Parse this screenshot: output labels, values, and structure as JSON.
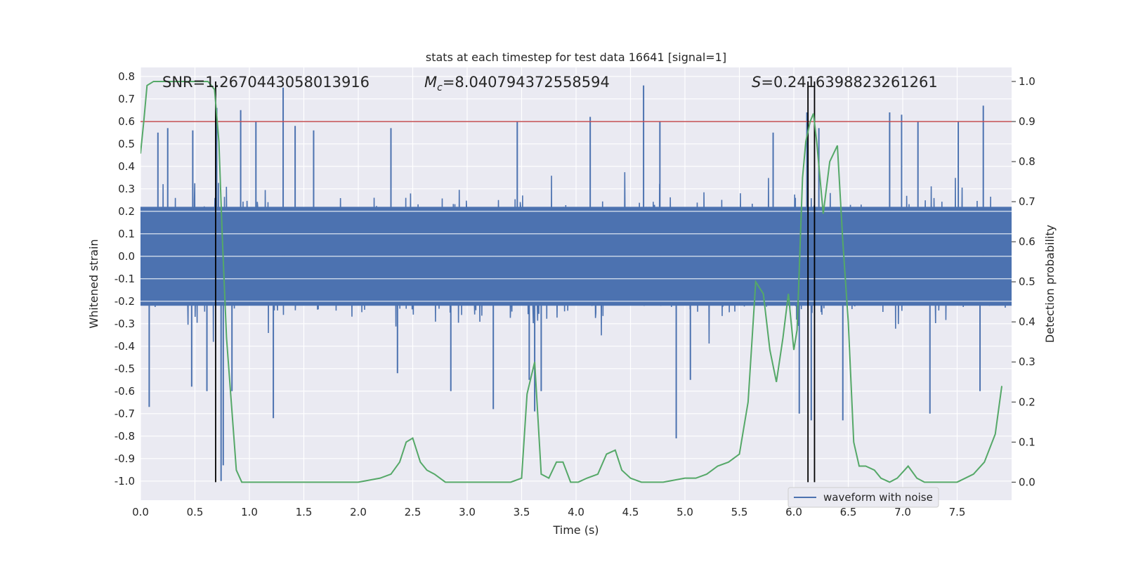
{
  "chart_data": {
    "type": "line",
    "title": "stats at each timestep for test data 16641 [signal=1]",
    "xlabel": "Time (s)",
    "ylabel": "Whitened strain",
    "y2label": "Detection probability",
    "xlim": [
      0.0,
      8.0
    ],
    "ylim": [
      -1.085,
      0.84
    ],
    "y2lim": [
      -0.045,
      1.035
    ],
    "xticks": [
      "0.0",
      "0.5",
      "1.0",
      "1.5",
      "2.0",
      "2.5",
      "3.0",
      "3.5",
      "4.0",
      "4.5",
      "5.0",
      "5.5",
      "6.0",
      "6.5",
      "7.0",
      "7.5"
    ],
    "yticks": [
      "0.8",
      "0.7",
      "0.6",
      "0.5",
      "0.4",
      "0.3",
      "0.2",
      "0.1",
      "0.0",
      "-0.1",
      "-0.2",
      "-0.3",
      "-0.4",
      "-0.5",
      "-0.6",
      "-0.7",
      "-0.8",
      "-0.9",
      "-1.0"
    ],
    "y2ticks": [
      "1.0",
      "0.9",
      "0.8",
      "0.7",
      "0.6",
      "0.5",
      "0.4",
      "0.3",
      "0.2",
      "0.1",
      "0.0"
    ],
    "grid": true,
    "legend": {
      "position": "bottom-right",
      "entries": [
        "waveform with noise"
      ]
    },
    "annotations": {
      "snr": "SNR=1.2670443058013916",
      "mc_symbol": "M",
      "mc_sub": "c",
      "mc_value": "=8.040794372558594",
      "s_symbol": "S",
      "s_value": "=0.2416398823261261"
    },
    "threshold_line": {
      "y2": 0.9,
      "color": "#c44e52"
    },
    "vertical_lines": [
      0.69,
      6.13,
      6.19
    ],
    "series": [
      {
        "name": "waveform with noise",
        "axis": "left",
        "color": "#4c72b0",
        "envelope": {
          "typical_abs": 0.27,
          "peak_abs": 0.55
        },
        "spikes": [
          {
            "t": 0.16,
            "v": 0.55
          },
          {
            "t": 0.25,
            "v": 0.57
          },
          {
            "t": 0.48,
            "v": 0.56
          },
          {
            "t": 0.7,
            "v": 0.66
          },
          {
            "t": 0.74,
            "v": -1.0
          },
          {
            "t": 0.76,
            "v": -0.93
          },
          {
            "t": 0.84,
            "v": -0.6
          },
          {
            "t": 0.92,
            "v": 0.65
          },
          {
            "t": 1.06,
            "v": 0.6
          },
          {
            "t": 1.22,
            "v": -0.72
          },
          {
            "t": 1.31,
            "v": 0.75
          },
          {
            "t": 1.42,
            "v": 0.58
          },
          {
            "t": 1.59,
            "v": 0.56
          },
          {
            "t": 0.08,
            "v": -0.67
          },
          {
            "t": 0.47,
            "v": -0.58
          },
          {
            "t": 0.61,
            "v": -0.6
          },
          {
            "t": 2.3,
            "v": 0.57
          },
          {
            "t": 2.36,
            "v": -0.52
          },
          {
            "t": 2.85,
            "v": -0.6
          },
          {
            "t": 3.24,
            "v": -0.68
          },
          {
            "t": 3.46,
            "v": 0.6
          },
          {
            "t": 3.57,
            "v": -0.55
          },
          {
            "t": 3.62,
            "v": -0.69
          },
          {
            "t": 3.68,
            "v": -0.6
          },
          {
            "t": 4.13,
            "v": 0.62
          },
          {
            "t": 4.62,
            "v": 0.76
          },
          {
            "t": 4.77,
            "v": 0.6
          },
          {
            "t": 4.92,
            "v": -0.81
          },
          {
            "t": 5.05,
            "v": -0.55
          },
          {
            "t": 5.81,
            "v": 0.55
          },
          {
            "t": 6.12,
            "v": 0.64
          },
          {
            "t": 6.16,
            "v": -0.73
          },
          {
            "t": 6.23,
            "v": 0.57
          },
          {
            "t": 6.45,
            "v": -0.73
          },
          {
            "t": 6.88,
            "v": 0.64
          },
          {
            "t": 6.99,
            "v": 0.63
          },
          {
            "t": 7.14,
            "v": 0.6
          },
          {
            "t": 7.25,
            "v": -0.7
          },
          {
            "t": 7.51,
            "v": 0.6
          },
          {
            "t": 7.74,
            "v": 0.67
          },
          {
            "t": 7.71,
            "v": -0.6
          },
          {
            "t": 6.05,
            "v": -0.7
          }
        ]
      },
      {
        "name": "",
        "axis": "right",
        "color": "#55a868",
        "x": [
          0.0,
          0.03,
          0.06,
          0.12,
          0.25,
          0.5,
          0.62,
          0.68,
          0.72,
          0.75,
          0.79,
          0.88,
          0.93,
          1.0,
          1.5,
          2.0,
          2.2,
          2.3,
          2.38,
          2.44,
          2.5,
          2.57,
          2.63,
          2.7,
          2.8,
          3.0,
          3.4,
          3.5,
          3.55,
          3.62,
          3.68,
          3.75,
          3.82,
          3.88,
          3.95,
          4.02,
          4.1,
          4.2,
          4.28,
          4.36,
          4.42,
          4.5,
          4.6,
          4.8,
          5.0,
          5.1,
          5.2,
          5.3,
          5.4,
          5.5,
          5.58,
          5.65,
          5.72,
          5.78,
          5.84,
          5.9,
          5.95,
          6.0,
          6.03,
          6.08,
          6.11,
          6.15,
          6.18,
          6.21,
          6.27,
          6.33,
          6.4,
          6.45,
          6.5,
          6.55,
          6.6,
          6.66,
          6.74,
          6.8,
          6.88,
          6.95,
          7.05,
          7.13,
          7.2,
          7.3,
          7.5,
          7.65,
          7.75,
          7.85,
          7.91
        ],
        "y": [
          0.82,
          0.9,
          0.99,
          1.0,
          1.0,
          1.0,
          1.0,
          0.98,
          0.85,
          0.62,
          0.36,
          0.03,
          0.0,
          0.0,
          0.0,
          0.0,
          0.01,
          0.02,
          0.05,
          0.1,
          0.11,
          0.05,
          0.03,
          0.02,
          0.0,
          0.0,
          0.0,
          0.01,
          0.22,
          0.3,
          0.02,
          0.01,
          0.05,
          0.05,
          0.0,
          0.0,
          0.01,
          0.02,
          0.07,
          0.08,
          0.03,
          0.01,
          0.0,
          0.0,
          0.01,
          0.01,
          0.02,
          0.04,
          0.05,
          0.07,
          0.2,
          0.5,
          0.47,
          0.33,
          0.25,
          0.36,
          0.47,
          0.33,
          0.38,
          0.76,
          0.85,
          0.9,
          0.92,
          0.85,
          0.67,
          0.8,
          0.84,
          0.6,
          0.4,
          0.1,
          0.04,
          0.04,
          0.03,
          0.01,
          0.0,
          0.01,
          0.04,
          0.01,
          0.0,
          0.0,
          0.0,
          0.02,
          0.05,
          0.12,
          0.24
        ]
      }
    ]
  }
}
